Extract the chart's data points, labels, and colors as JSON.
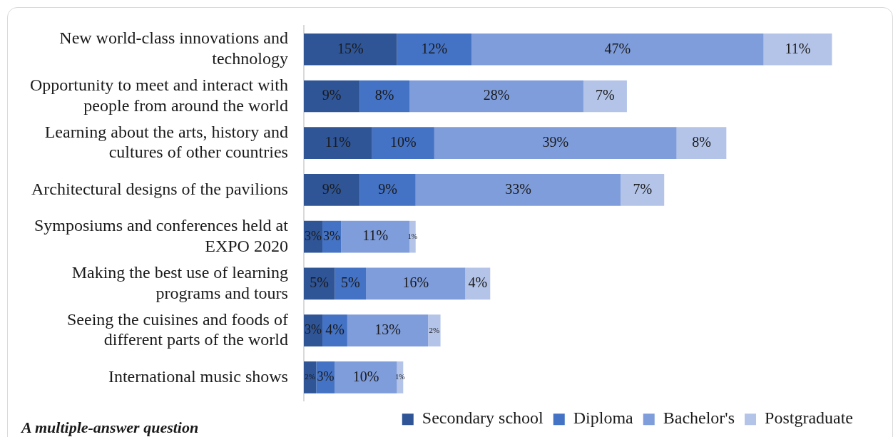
{
  "chart_data": {
    "type": "bar",
    "orientation": "horizontal",
    "stacked": true,
    "tick_labels": "y",
    "legend": "bottom right",
    "categories": [
      "New world-class innovations and technology",
      "Opportunity to meet and interact with people from around the world",
      "Learning about the arts, history and cultures of other countries",
      "Architectural designs of the pavilions",
      "Symposiums and conferences held at EXPO 2020",
      "Making the best use of learning programs and tours",
      "Seeing the cuisines and foods of different parts of the world",
      "International music shows"
    ],
    "series": [
      {
        "name": "Secondary school",
        "color": "#2f5597",
        "values": [
          15,
          9,
          11,
          9,
          3,
          5,
          3,
          2
        ],
        "value_labels": [
          "15%",
          "9%",
          "11%",
          "9%",
          "3%",
          "5%",
          "3%",
          "2%"
        ]
      },
      {
        "name": "Diploma",
        "color": "#4472c4",
        "values": [
          12,
          8,
          10,
          9,
          3,
          5,
          4,
          3
        ],
        "value_labels": [
          "12%",
          "8%",
          "10%",
          "9%",
          "3%",
          "5%",
          "4%",
          "3%"
        ]
      },
      {
        "name": "Bachelor's",
        "color": "#7f9ddb",
        "values": [
          47,
          28,
          39,
          33,
          11,
          16,
          13,
          10
        ],
        "value_labels": [
          "47%",
          "28%",
          "39%",
          "33%",
          "11%",
          "16%",
          "13%",
          "10%"
        ]
      },
      {
        "name": "Postgraduate",
        "color": "#b4c4e8",
        "values": [
          11,
          7,
          8,
          7,
          1,
          4,
          2,
          1
        ],
        "value_labels": [
          "11%",
          "7%",
          "8%",
          "7%",
          "1%",
          "4%",
          "2%",
          "1%"
        ]
      }
    ],
    "annotations": [
      "A multiple-answer question"
    ]
  }
}
